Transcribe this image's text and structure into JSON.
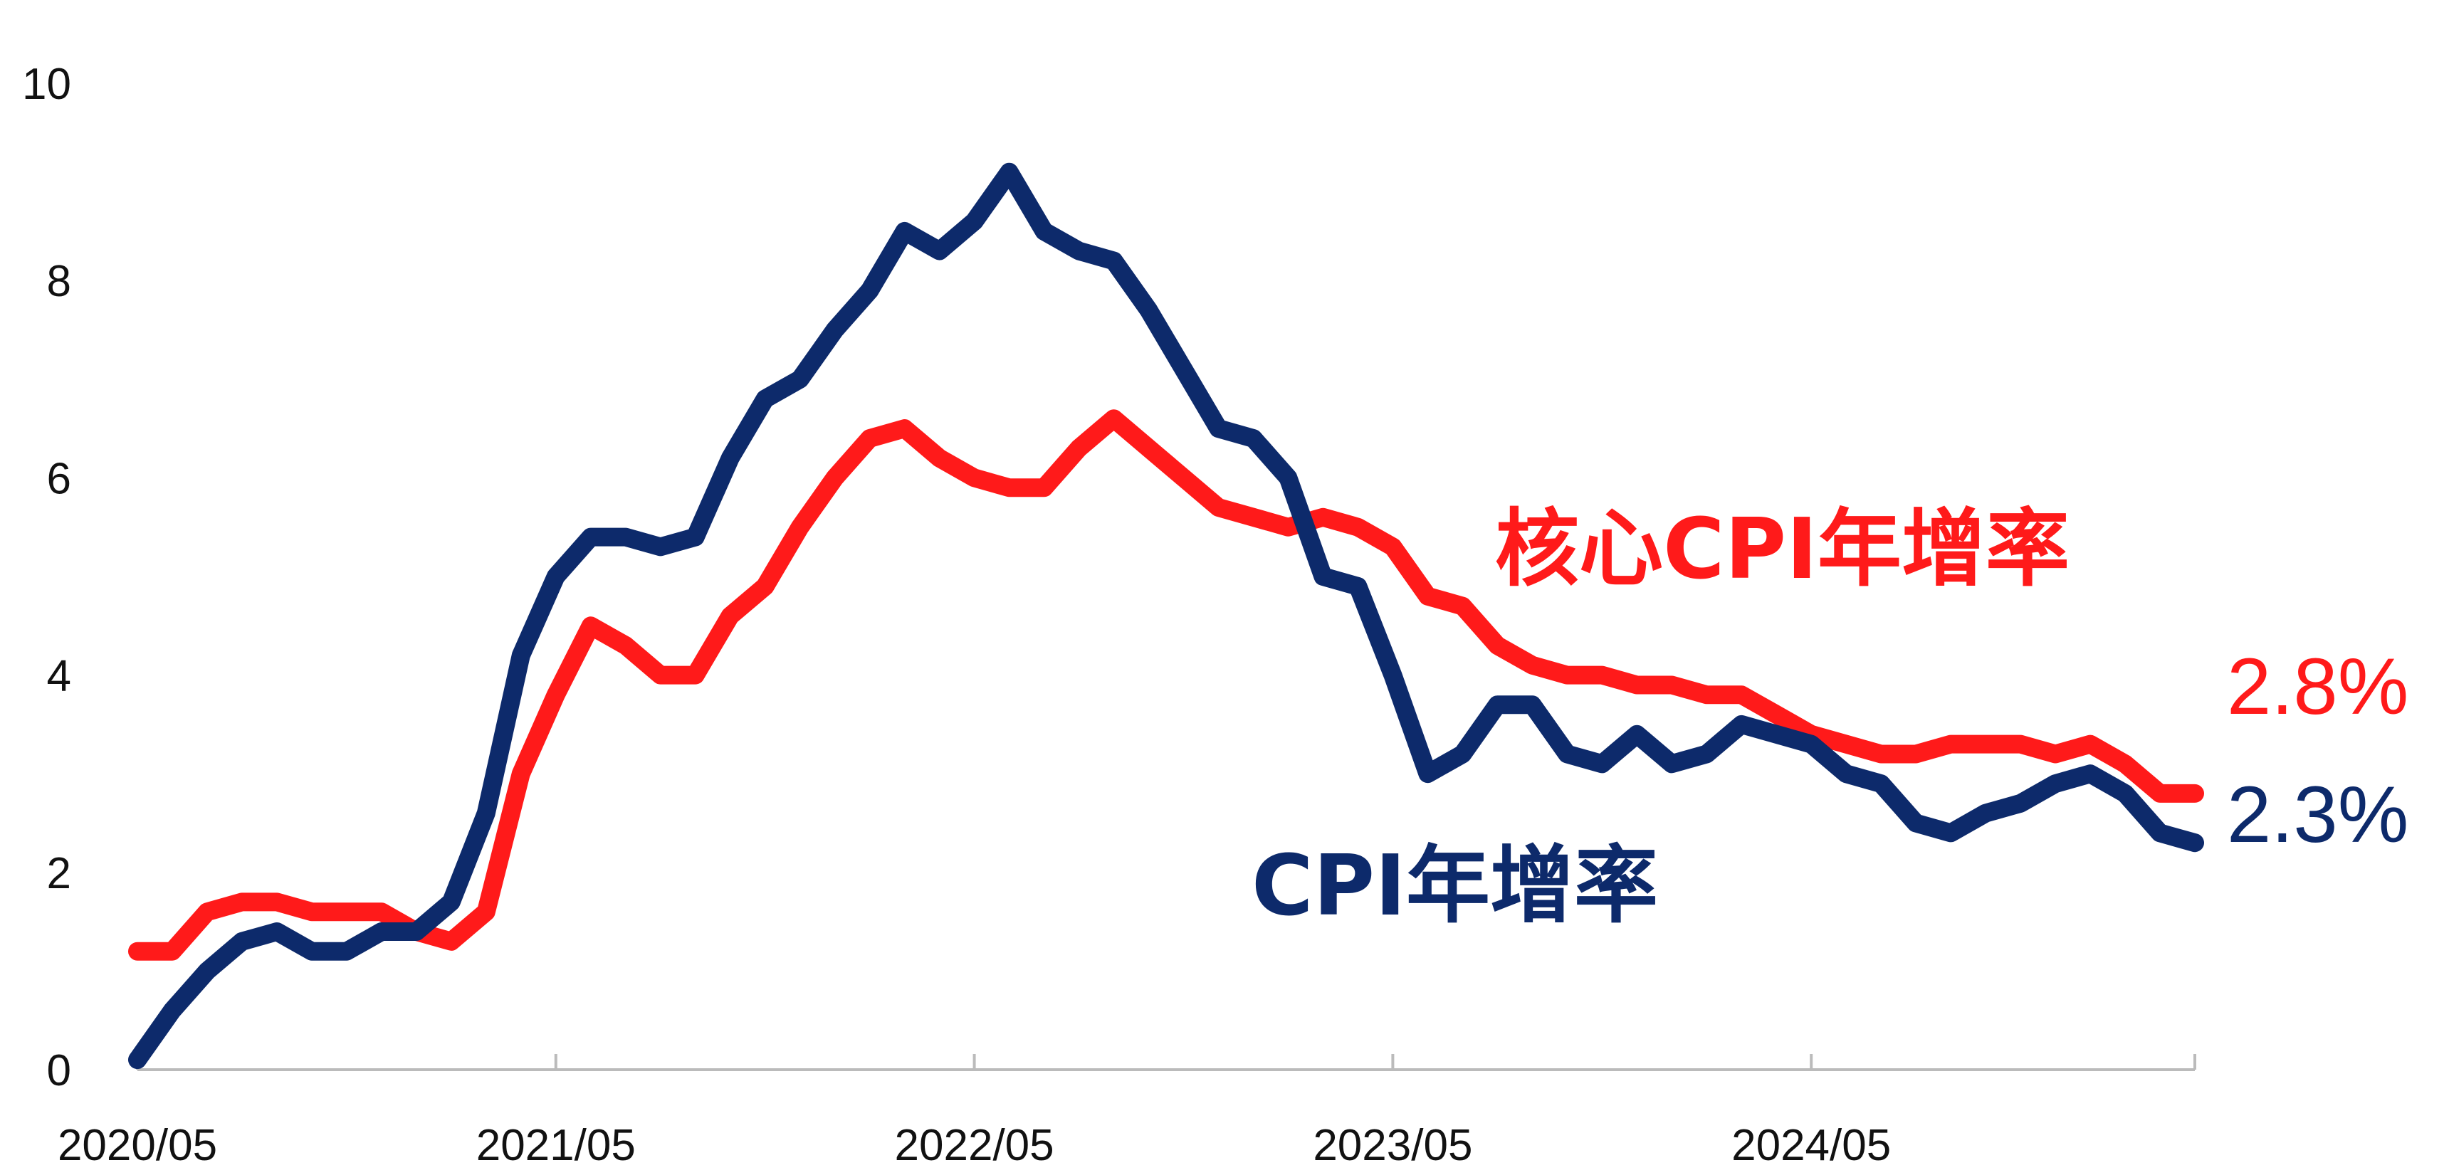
{
  "chart_data": {
    "type": "line",
    "title": "",
    "xlabel": "",
    "ylabel": "",
    "ylim": [
      0,
      10
    ],
    "yticks": [
      "0",
      "2",
      "4",
      "6",
      "8",
      "10"
    ],
    "xticks": [
      "2020/05",
      "2021/05",
      "2022/05",
      "2023/05",
      "2024/05"
    ],
    "x_start": "2020/05",
    "x_end": "2025/04",
    "grid": false,
    "colors": {
      "core_cpi": "#ff1a1a",
      "cpi": "#0d2a6b"
    },
    "series": [
      {
        "name": "核心CPI年增率",
        "key": "core_cpi",
        "end_label": "2.8%",
        "values": [
          1.2,
          1.2,
          1.6,
          1.7,
          1.7,
          1.6,
          1.6,
          1.6,
          1.4,
          1.3,
          1.6,
          3.0,
          3.8,
          4.5,
          4.3,
          4.0,
          4.0,
          4.6,
          4.9,
          5.5,
          6.0,
          6.4,
          6.5,
          6.2,
          6.0,
          5.9,
          5.9,
          6.3,
          6.6,
          6.3,
          6.0,
          5.7,
          5.6,
          5.5,
          5.6,
          5.5,
          5.3,
          4.8,
          4.7,
          4.3,
          4.1,
          4.0,
          4.0,
          3.9,
          3.9,
          3.8,
          3.8,
          3.6,
          3.4,
          3.3,
          3.2,
          3.2,
          3.3,
          3.3,
          3.3,
          3.2,
          3.3,
          3.1,
          2.8,
          2.8
        ]
      },
      {
        "name": "CPI年增率",
        "key": "cpi",
        "end_label": "2.3%",
        "values": [
          0.1,
          0.6,
          1.0,
          1.3,
          1.4,
          1.2,
          1.2,
          1.4,
          1.4,
          1.7,
          2.6,
          4.2,
          5.0,
          5.4,
          5.4,
          5.3,
          5.4,
          6.2,
          6.8,
          7.0,
          7.5,
          7.9,
          8.5,
          8.3,
          8.6,
          9.1,
          8.5,
          8.3,
          8.2,
          7.7,
          7.1,
          6.5,
          6.4,
          6.0,
          5.0,
          4.9,
          4.0,
          3.0,
          3.2,
          3.7,
          3.7,
          3.2,
          3.1,
          3.4,
          3.1,
          3.2,
          3.5,
          3.4,
          3.3,
          3.0,
          2.9,
          2.5,
          2.4,
          2.6,
          2.7,
          2.9,
          3.0,
          2.8,
          2.4,
          2.3
        ]
      }
    ]
  }
}
